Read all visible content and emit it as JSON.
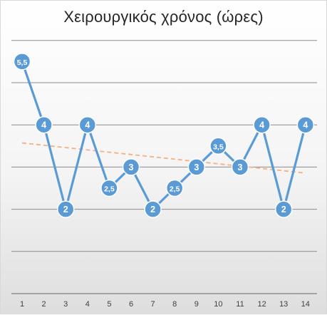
{
  "chart_data": {
    "type": "line",
    "title": "Χειρουργικός χρόνος (ώρες)",
    "xlabel": "",
    "ylabel": "",
    "categories": [
      "1",
      "2",
      "3",
      "4",
      "5",
      "6",
      "7",
      "8",
      "9",
      "10",
      "11",
      "12",
      "13",
      "14"
    ],
    "series": [
      {
        "values": [
          5.5,
          4,
          2,
          4,
          2.5,
          3,
          2,
          2.5,
          3,
          3.5,
          3,
          4,
          2,
          4
        ],
        "data_labels": [
          "5,5",
          "4",
          "2",
          "4",
          "2,5",
          "3",
          "2",
          "2,5",
          "3",
          "3,5",
          "3",
          "4",
          "2",
          "4"
        ],
        "color": "#5b9bd5"
      }
    ],
    "trendline": {
      "type": "linear",
      "style": "dashed",
      "color": "#f4b183"
    },
    "ylim": [
      0,
      6
    ],
    "grid": true,
    "legend": "none",
    "y_tick_labels_shown": false
  },
  "colors": {
    "series": "#5b9bd5",
    "trend": "#f4b183",
    "grid": "#808080",
    "title": "#262626"
  }
}
